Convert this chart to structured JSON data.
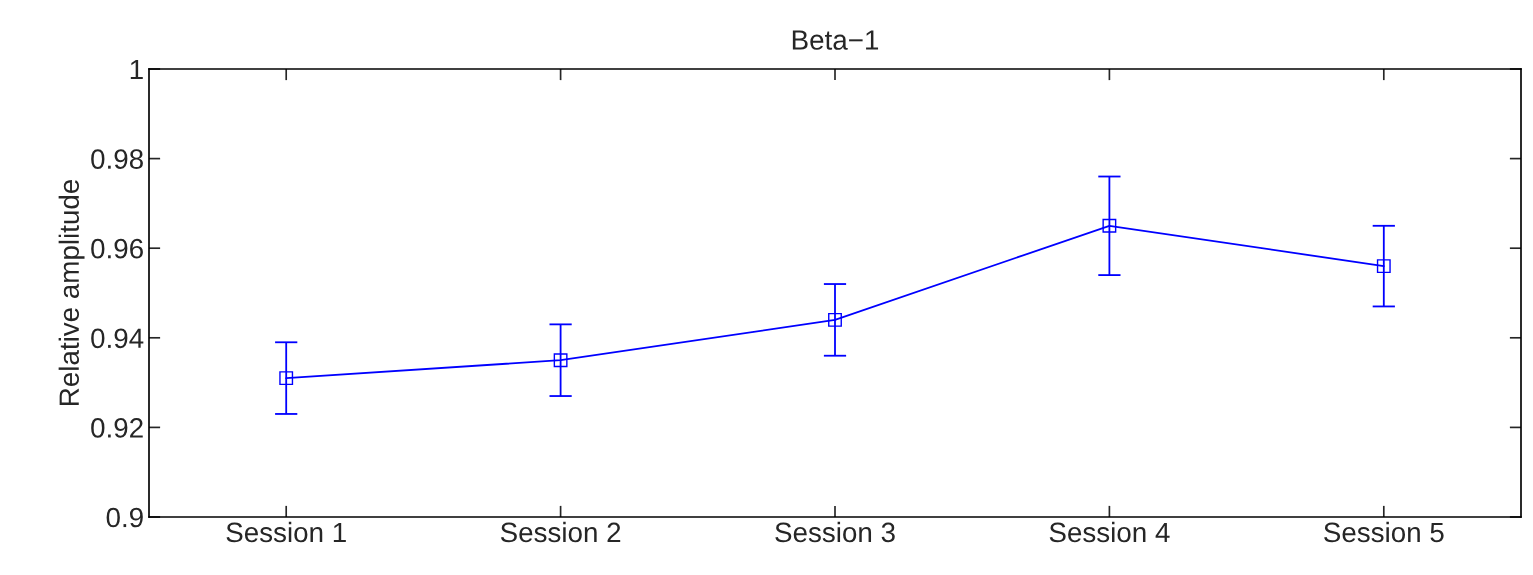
{
  "chart_data": {
    "type": "line",
    "title": "Beta−1",
    "ylabel": "Relative amplitude",
    "categories": [
      "Session 1",
      "Session 2",
      "Session 3",
      "Session 4",
      "Session 5"
    ],
    "series": [
      {
        "color": "#0000ff",
        "values": [
          0.931,
          0.935,
          0.944,
          0.965,
          0.956
        ],
        "errors": [
          0.008,
          0.008,
          0.008,
          0.011,
          0.009
        ]
      }
    ],
    "ylim": [
      0.9,
      1.0
    ],
    "yticks": [
      0.9,
      0.92,
      0.94,
      0.96,
      0.98,
      1
    ],
    "marker": "square",
    "line_style": "solid",
    "grid": false,
    "legend": false
  }
}
